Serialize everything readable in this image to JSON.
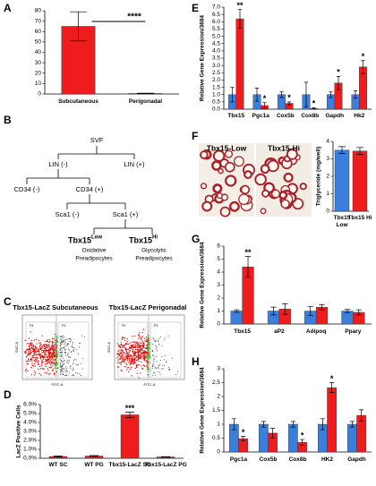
{
  "panels": [
    "A",
    "B",
    "C",
    "D",
    "E",
    "F",
    "G",
    "H"
  ],
  "diagram": {
    "nodes": [
      "SVF",
      "LIN (-)",
      "LIN (+)",
      "CD34 (-)",
      "CD34 (+)",
      "Sca1 (-)",
      "Sca1 (+)"
    ],
    "outcomes": [
      {
        "name": "Tbx15",
        "sup": "Low",
        "lines": [
          "Oxidative",
          "Preadipocytes"
        ]
      },
      {
        "name": "Tbx15",
        "sup": "Hi",
        "lines": [
          "Glycolytic",
          "Preadipocytes"
        ]
      }
    ]
  },
  "flow": {
    "titles": [
      "Tbx15-LacZ Subcutaneous",
      "Tbx15-LacZ Perigonadal"
    ],
    "xlabel": "FITC-A",
    "ylabel": "SSC-A",
    "gates": [
      "P4",
      "P3"
    ]
  },
  "images": {
    "labels": [
      "Tbx15-Low",
      "Tbx15-Hi"
    ]
  },
  "chart_data": [
    {
      "type": "bar",
      "categories": [
        "Subcutaneous",
        "Perigonadal"
      ],
      "annotation": "****",
      "series": [
        {
          "color": "#ee1c1c",
          "values": [
            65,
            0.5
          ],
          "errors": [
            14,
            0.3
          ]
        }
      ],
      "ylim": [
        0,
        80
      ],
      "yticks": [
        0,
        10,
        20,
        30,
        40,
        50,
        60,
        70,
        80
      ]
    },
    {
      "type": "bar",
      "categories": [
        "WT SC",
        "WT PG",
        "Tbx15-LacZ SC",
        "Tbx15-LacZ PG"
      ],
      "ylabel": "LacZ Positive Cells",
      "series": [
        {
          "color": "#ee1c1c",
          "values": [
            0.2,
            0.25,
            4.85,
            0.15
          ],
          "errors": [
            0.05,
            0.05,
            0.3,
            0.03
          ],
          "significance": [
            null,
            null,
            "***",
            null
          ]
        }
      ],
      "ylim": [
        0,
        6
      ],
      "yticks": [
        {
          "value": 0,
          "label": "0.0%"
        },
        {
          "value": 1,
          "label": "1.0%"
        },
        {
          "value": 2,
          "label": "2.0%"
        },
        {
          "value": 3,
          "label": "3.0%"
        },
        {
          "value": 4,
          "label": "4.0%"
        },
        {
          "value": 5,
          "label": "5.0%"
        },
        {
          "value": 6,
          "label": "6.0%"
        }
      ]
    },
    {
      "type": "bar",
      "categories": [
        "Tbx15",
        "Pgc1a",
        "Cox5b",
        "Cox8b",
        "Gapdh",
        "Hk2"
      ],
      "ylabel": "Relative Gene Expression/3684",
      "series": [
        {
          "color": "#3a7fdc",
          "values": [
            1,
            1,
            1,
            1,
            1,
            1
          ],
          "errors": [
            0.5,
            0.45,
            0.2,
            0.85,
            0.2,
            0.25
          ]
        },
        {
          "color": "#ee1c1c",
          "values": [
            6.2,
            0.25,
            0.4,
            0.05,
            1.8,
            2.9
          ],
          "errors": [
            0.65,
            0.2,
            0.1,
            0.05,
            0.45,
            0.45
          ],
          "significance": [
            "**",
            "*",
            "*",
            "*",
            "*",
            "*"
          ]
        }
      ],
      "ylim": [
        0,
        7
      ],
      "yticks": [
        {
          "value": 0,
          "label": "0.0"
        },
        0.5,
        {
          "value": 1,
          "label": "1.0"
        },
        1.5,
        {
          "value": 2,
          "label": "2.0"
        },
        2.5,
        {
          "value": 3,
          "label": "3.0"
        },
        3.5,
        {
          "value": 4,
          "label": "4.0"
        },
        4.5,
        {
          "value": 5,
          "label": "5.0"
        },
        5.5,
        {
          "value": 6,
          "label": "6.0"
        },
        6.5,
        {
          "value": 7,
          "label": "7.0"
        }
      ]
    },
    {
      "type": "bar",
      "categories": [
        "Tbx15 Low",
        "Tbx15 Hi"
      ],
      "ylabel": "Triglyceride (mg/well)",
      "series": [
        {
          "colors": [
            "#3a7fdc",
            "#ee1c1c"
          ],
          "values": [
            3.5,
            3.45
          ],
          "errors": [
            0.2,
            0.2
          ]
        }
      ],
      "ylim": [
        0,
        4
      ],
      "yticks": [
        0,
        1,
        2,
        3,
        4
      ]
    },
    {
      "type": "bar",
      "categories": [
        "Tbx15",
        "aP2",
        "Adipoq",
        "Ppary"
      ],
      "ylabel": "Relative Gene Expression/3684",
      "series": [
        {
          "color": "#3a7fdc",
          "values": [
            1,
            1,
            1,
            1
          ],
          "errors": [
            0.1,
            0.3,
            0.35,
            0.12
          ]
        },
        {
          "color": "#ee1c1c",
          "values": [
            4.4,
            1.15,
            1.3,
            0.9
          ],
          "errors": [
            0.8,
            0.4,
            0.2,
            0.2
          ],
          "significance": [
            "**",
            null,
            null,
            null
          ]
        }
      ],
      "ylim": [
        0,
        6
      ],
      "yticks": [
        0,
        1,
        2,
        3,
        4,
        5,
        6
      ]
    },
    {
      "type": "bar",
      "categories": [
        "Pgc1a",
        "Cox5b",
        "Cox8b",
        "HK2",
        "Gapdh"
      ],
      "ylabel": "Relative Gene Expression/3684",
      "series": [
        {
          "color": "#3a7fdc",
          "values": [
            1,
            1,
            1,
            1,
            1
          ],
          "errors": [
            0.2,
            0.1,
            0.1,
            0.2,
            0.1
          ]
        },
        {
          "color": "#ee1c1c",
          "values": [
            0.48,
            0.68,
            0.35,
            2.32,
            1.32
          ],
          "errors": [
            0.08,
            0.17,
            0.1,
            0.18,
            0.2
          ],
          "significance": [
            "*",
            null,
            "*",
            "*",
            null
          ]
        }
      ],
      "ylim": [
        0,
        3
      ],
      "yticks": [
        0,
        0.5,
        1,
        1.5,
        2,
        2.5,
        3
      ]
    }
  ]
}
